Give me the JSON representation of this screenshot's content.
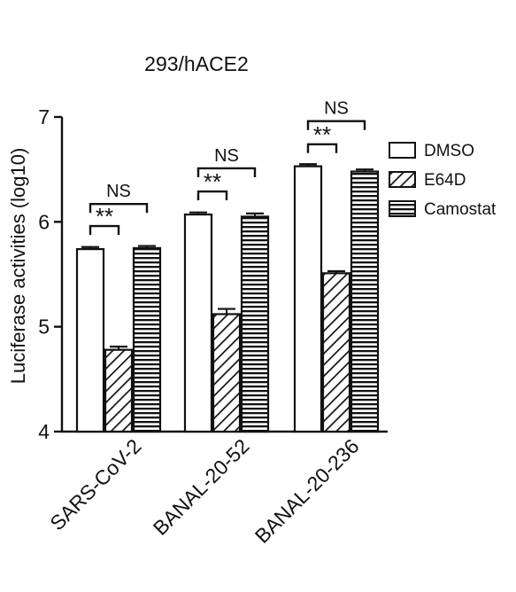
{
  "chart_data": {
    "type": "bar",
    "title": "293/hACE2",
    "ylabel": "Luciferase activities (log10)",
    "xlabel": "",
    "ylim": [
      4,
      7
    ],
    "yticks": [
      4,
      5,
      6,
      7
    ],
    "categories": [
      "SARS-CoV-2",
      "BANAL-20-52",
      "BANAL-20-236"
    ],
    "series": [
      {
        "name": "DMSO",
        "pattern": "open",
        "values": [
          5.74,
          6.07,
          6.53
        ],
        "errors": [
          0.02,
          0.02,
          0.02
        ]
      },
      {
        "name": "E64D",
        "pattern": "diagonal-hatch",
        "values": [
          4.78,
          5.12,
          5.51
        ],
        "errors": [
          0.03,
          0.05,
          0.02
        ]
      },
      {
        "name": "Camostat",
        "pattern": "horizontal-stripes",
        "values": [
          5.75,
          6.05,
          6.48
        ],
        "errors": [
          0.02,
          0.03,
          0.02
        ]
      }
    ],
    "annotations": [
      {
        "category": 0,
        "from": 0,
        "to": 1,
        "label": "**",
        "level": 5.96
      },
      {
        "category": 0,
        "from": 0,
        "to": 2,
        "label": "NS",
        "level": 6.17
      },
      {
        "category": 1,
        "from": 0,
        "to": 1,
        "label": "**",
        "level": 6.29
      },
      {
        "category": 1,
        "from": 0,
        "to": 2,
        "label": "NS",
        "level": 6.51
      },
      {
        "category": 2,
        "from": 0,
        "to": 1,
        "label": "**",
        "level": 6.74
      },
      {
        "category": 2,
        "from": 0,
        "to": 2,
        "label": "NS",
        "level": 6.96
      }
    ],
    "legend_position": "right",
    "grid": false,
    "colors": {
      "ink": "#111111",
      "fill": "#ffffff"
    }
  }
}
